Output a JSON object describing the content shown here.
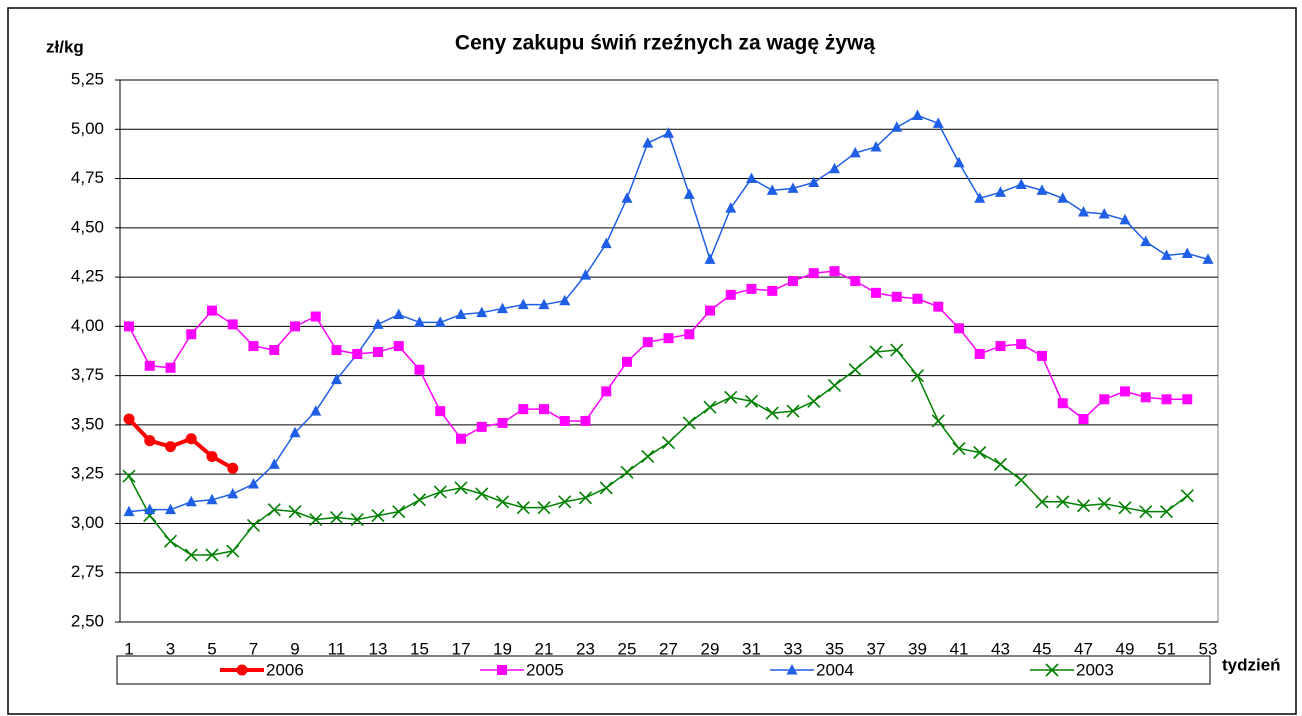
{
  "chart_data": {
    "type": "line",
    "title": "Ceny zakupu świń rzeźnych za wagę żywą",
    "y_label": "zł/kg",
    "x_label": "tydzień",
    "categories": [
      "1",
      null,
      "3",
      null,
      "5",
      null,
      "7",
      null,
      "9",
      null,
      "11",
      null,
      "13",
      null,
      "15",
      null,
      "17",
      null,
      "19",
      null,
      "21",
      null,
      "23",
      null,
      "25",
      null,
      "27",
      null,
      "29",
      null,
      "31",
      null,
      "33",
      null,
      "35",
      null,
      "37",
      null,
      "39",
      null,
      "41",
      null,
      "43",
      null,
      "45",
      null,
      "47",
      null,
      "49",
      null,
      "51",
      null,
      "53"
    ],
    "ylim": [
      2.5,
      5.25
    ],
    "yticks": [
      {
        "value": 2.5,
        "label": "2,50"
      },
      {
        "value": 2.75,
        "label": "2,75"
      },
      {
        "value": 3,
        "label": "3,00"
      },
      {
        "value": 3.25,
        "label": "3,25"
      },
      {
        "value": 3.5,
        "label": "3,50"
      },
      {
        "value": 3.75,
        "label": "3,75"
      },
      {
        "value": 4,
        "label": "4,00"
      },
      {
        "value": 4.25,
        "label": "4,25"
      },
      {
        "value": 4.5,
        "label": "4,50"
      },
      {
        "value": 4.75,
        "label": "4,75"
      },
      {
        "value": 5,
        "label": "5,00"
      },
      {
        "value": 5.25,
        "label": "5,25"
      }
    ],
    "grid": true,
    "legend": "bottom",
    "series": [
      {
        "name": "2006",
        "color": "#ff0000",
        "marker": "circle",
        "width": 4,
        "values": [
          3.53,
          3.42,
          3.39,
          3.43,
          3.34,
          3.28,
          null,
          null,
          null,
          null,
          null,
          null,
          null,
          null,
          null,
          null,
          null,
          null,
          null,
          null,
          null,
          null,
          null,
          null,
          null,
          null,
          null,
          null,
          null,
          null,
          null,
          null,
          null,
          null,
          null,
          null,
          null,
          null,
          null,
          null,
          null,
          null,
          null,
          null,
          null,
          null,
          null,
          null,
          null,
          null,
          null,
          null,
          null
        ]
      },
      {
        "name": "2005",
        "color": "#ff00ff",
        "marker": "square",
        "width": 1.5,
        "values": [
          4.0,
          3.8,
          3.79,
          3.96,
          4.08,
          4.01,
          3.9,
          3.88,
          4.0,
          4.05,
          3.88,
          3.86,
          3.87,
          3.9,
          3.78,
          3.57,
          3.43,
          3.49,
          3.51,
          3.58,
          3.58,
          3.52,
          3.52,
          3.67,
          3.82,
          3.92,
          3.94,
          3.96,
          4.08,
          4.16,
          4.19,
          4.18,
          4.23,
          4.27,
          4.28,
          4.23,
          4.17,
          4.15,
          4.14,
          4.1,
          3.99,
          3.86,
          3.9,
          3.91,
          3.85,
          3.61,
          3.53,
          3.63,
          3.67,
          3.64,
          3.63,
          3.63,
          null
        ]
      },
      {
        "name": "2004",
        "color": "#1f5fe6",
        "marker": "triangle",
        "width": 1.5,
        "values": [
          3.06,
          3.07,
          3.07,
          3.11,
          3.12,
          3.15,
          3.2,
          3.3,
          3.46,
          3.57,
          3.73,
          3.86,
          4.01,
          4.06,
          4.02,
          4.02,
          4.06,
          4.07,
          4.09,
          4.11,
          4.11,
          4.13,
          4.26,
          4.42,
          4.65,
          4.93,
          4.98,
          4.67,
          4.34,
          4.6,
          4.75,
          4.69,
          4.7,
          4.73,
          4.8,
          4.88,
          4.91,
          5.01,
          5.07,
          5.03,
          4.83,
          4.65,
          4.68,
          4.72,
          4.69,
          4.65,
          4.58,
          4.57,
          4.54,
          4.43,
          4.36,
          4.37,
          4.34
        ]
      },
      {
        "name": "2003",
        "color": "#008000",
        "marker": "x",
        "width": 1.5,
        "values": [
          3.24,
          3.04,
          2.91,
          2.84,
          2.84,
          2.86,
          2.99,
          3.07,
          3.06,
          3.02,
          3.03,
          3.02,
          3.04,
          3.06,
          3.12,
          3.16,
          3.18,
          3.15,
          3.11,
          3.08,
          3.08,
          3.11,
          3.13,
          3.18,
          3.26,
          3.34,
          3.41,
          3.51,
          3.59,
          3.64,
          3.62,
          3.56,
          3.57,
          3.62,
          3.7,
          3.78,
          3.87,
          3.88,
          3.75,
          3.52,
          3.38,
          3.36,
          3.3,
          3.22,
          3.11,
          3.11,
          3.09,
          3.1,
          3.08,
          3.06,
          3.06,
          3.14,
          null
        ]
      }
    ]
  }
}
